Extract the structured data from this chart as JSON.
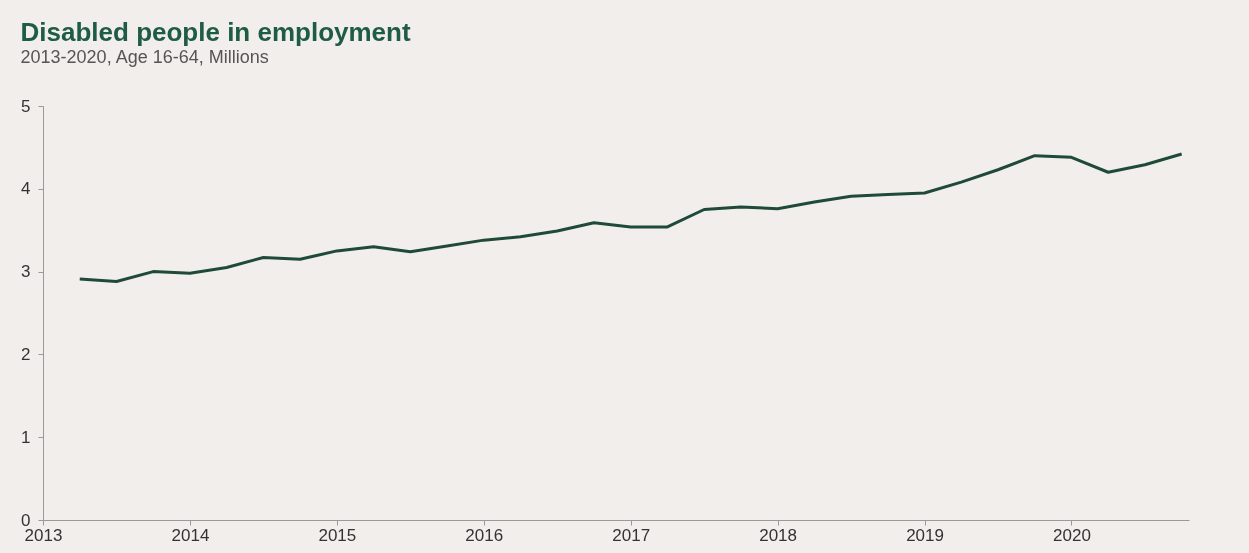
{
  "chart_data": {
    "type": "line",
    "title": "Disabled people in employment",
    "subtitle": "2013-2020, Age 16-64, Millions",
    "x": [
      2013.25,
      2013.5,
      2013.75,
      2014.0,
      2014.25,
      2014.5,
      2014.75,
      2015.0,
      2015.25,
      2015.5,
      2015.75,
      2016.0,
      2016.25,
      2016.5,
      2016.75,
      2017.0,
      2017.25,
      2017.5,
      2017.75,
      2018.0,
      2018.25,
      2018.5,
      2018.75,
      2019.0,
      2019.25,
      2019.5,
      2019.75,
      2020.0,
      2020.25,
      2020.5,
      2020.75
    ],
    "series": [
      {
        "color": "#1f4a3a",
        "values": [
          2.91,
          2.88,
          3.0,
          2.98,
          3.05,
          3.17,
          3.15,
          3.25,
          3.3,
          3.24,
          3.31,
          3.38,
          3.42,
          3.49,
          3.59,
          3.54,
          3.54,
          3.75,
          3.78,
          3.76,
          3.84,
          3.91,
          3.93,
          3.95,
          4.08,
          4.23,
          4.4,
          4.38,
          4.2,
          4.29,
          4.42
        ]
      }
    ],
    "xlim": [
      2013,
      2020.8
    ],
    "xticks": [
      2013,
      2014,
      2015,
      2016,
      2017,
      2018,
      2019,
      2020
    ],
    "ylim": [
      0,
      5
    ],
    "yticks": [
      0,
      1,
      2,
      3,
      4,
      5
    ],
    "grid": false,
    "marker": "none",
    "line_style": "solid"
  }
}
